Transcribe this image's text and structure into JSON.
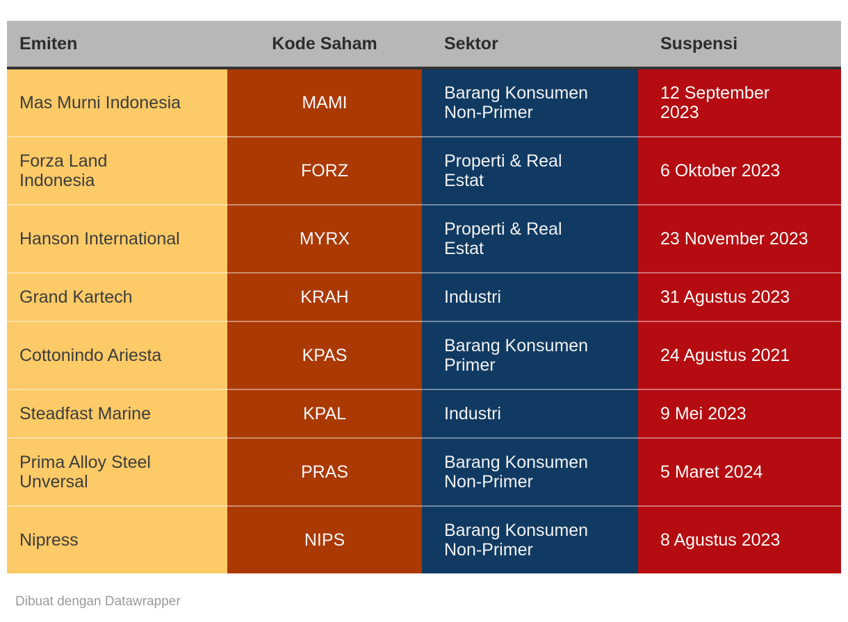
{
  "table": {
    "columns": [
      {
        "id": "emiten",
        "label": "Emiten"
      },
      {
        "id": "kode_saham",
        "label": "Kode Saham"
      },
      {
        "id": "sektor",
        "label": "Sektor"
      },
      {
        "id": "suspensi",
        "label": "Suspensi"
      }
    ],
    "rows": [
      {
        "emiten": "Mas Murni Indonesia",
        "kode": "MAMI",
        "sektor": "Barang Konsumen\nNon-Primer",
        "suspensi": "12 September\n2023"
      },
      {
        "emiten": "Forza Land\nIndonesia",
        "kode": "FORZ",
        "sektor": "Properti & Real\nEstat",
        "suspensi": "6 Oktober 2023"
      },
      {
        "emiten": "Hanson International",
        "kode": "MYRX",
        "sektor": "Properti & Real\nEstat",
        "suspensi": "23 November 2023"
      },
      {
        "emiten": "Grand Kartech",
        "kode": "KRAH",
        "sektor": "Industri",
        "suspensi": "31 Agustus 2023"
      },
      {
        "emiten": "Cottonindo Ariesta",
        "kode": "KPAS",
        "sektor": "Barang Konsumen\nPrimer",
        "suspensi": "24 Agustus 2021"
      },
      {
        "emiten": "Steadfast Marine",
        "kode": "KPAL",
        "sektor": "Industri",
        "suspensi": "9 Mei 2023"
      },
      {
        "emiten": "Prima Alloy Steel\nUnversal",
        "kode": "PRAS",
        "sektor": "Barang Konsumen\nNon-Primer",
        "suspensi": "5 Maret 2024"
      },
      {
        "emiten": "Nipress",
        "kode": "NIPS",
        "sektor": "Barang Konsumen\nNon-Primer",
        "suspensi": "8 Agustus 2023"
      }
    ]
  },
  "chart_data": {
    "type": "table",
    "title": "",
    "columns": [
      "Emiten",
      "Kode Saham",
      "Sektor",
      "Suspensi"
    ],
    "rows": [
      [
        "Mas Murni Indonesia",
        "MAMI",
        "Barang Konsumen Non-Primer",
        "12 September 2023"
      ],
      [
        "Forza Land Indonesia",
        "FORZ",
        "Properti & Real Estat",
        "6 Oktober 2023"
      ],
      [
        "Hanson International",
        "MYRX",
        "Properti & Real Estat",
        "23 November 2023"
      ],
      [
        "Grand Kartech",
        "KRAH",
        "Industri",
        "31 Agustus 2023"
      ],
      [
        "Cottonindo Ariesta",
        "KPAS",
        "Barang Konsumen Primer",
        "24 Agustus 2021"
      ],
      [
        "Steadfast Marine",
        "KPAL",
        "Industri",
        "9 Mei 2023"
      ],
      [
        "Prima Alloy Steel Unversal",
        "PRAS",
        "Barang Konsumen Non-Primer",
        "5 Maret 2024"
      ],
      [
        "Nipress",
        "NIPS",
        "Barang Konsumen Non-Primer",
        "8 Agustus 2023"
      ]
    ],
    "legend_position": "none",
    "grid": false
  },
  "footer": {
    "credit": "Dibuat dengan Datawrapper"
  },
  "colors": {
    "header_bg": "#b7b7b7",
    "header_text": "#2d2d2d",
    "header_border": "#333333",
    "emiten_bg": "#fcca66",
    "emiten_text": "#3d3d3d",
    "kode_bg": "#ab3903",
    "sektor_bg": "#103a62",
    "suspensi_bg": "#b40c10",
    "light_text": "#f7f7f7",
    "row_separator": "rgba(255,255,255,0.42)",
    "credit_text": "#9a9a9a"
  }
}
